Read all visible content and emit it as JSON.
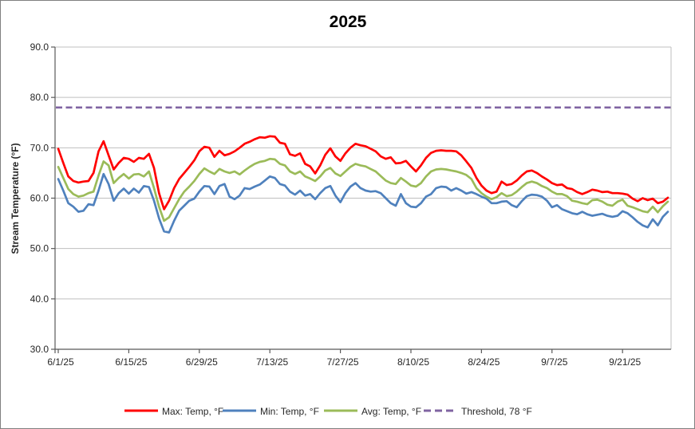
{
  "chart": {
    "title": "2025",
    "y_axis_label": "Stream Temperature (°F)"
  },
  "colors": {
    "max_line": "#FF0000",
    "min_line": "#4F81BD",
    "avg_line": "#9BBB59",
    "threshold_line": "#8064A2",
    "gridline": "#BFBFBF",
    "axis": "#595959",
    "label_text": "#262626"
  },
  "chart_data": {
    "type": "line",
    "title": "2025",
    "xlabel": "",
    "ylabel": "Stream Temperature (°F)",
    "ylim": [
      30,
      90
    ],
    "y_tick_step": 10,
    "y_tick_labels": [
      "90.0",
      "80.0",
      "70.0",
      "60.0",
      "50.0",
      "40.0",
      "30.0"
    ],
    "x_tick_labels": [
      "6/1/25",
      "6/15/25",
      "6/29/25",
      "7/13/25",
      "7/27/25",
      "8/10/25",
      "8/24/25",
      "9/7/25",
      "9/21/25"
    ],
    "x_tick_day_index": [
      0,
      14,
      28,
      42,
      56,
      70,
      84,
      98,
      112
    ],
    "x_start": "6/1/25",
    "x_end": "9/30/25",
    "x_interval_days": 1,
    "grid": "horizontal",
    "legend_position": "bottom",
    "series": [
      {
        "name": "Max: Temp, °F",
        "color": "#FF0000",
        "style": "solid",
        "values": [
          69.8,
          67.0,
          64.3,
          63.4,
          63.1,
          63.3,
          63.4,
          65.0,
          69.3,
          71.3,
          68.5,
          65.7,
          67.0,
          68.0,
          67.8,
          67.2,
          68.0,
          67.8,
          68.8,
          66.0,
          61.0,
          57.8,
          59.5,
          62.0,
          63.8,
          65.0,
          66.2,
          67.5,
          69.3,
          70.2,
          70.0,
          68.2,
          69.4,
          68.5,
          68.8,
          69.3,
          70.0,
          70.8,
          71.2,
          71.7,
          72.1,
          72.0,
          72.3,
          72.2,
          71.0,
          70.8,
          68.7,
          68.4,
          68.9,
          66.8,
          66.3,
          64.9,
          66.5,
          68.6,
          69.9,
          68.3,
          67.4,
          68.9,
          70.0,
          70.8,
          70.5,
          70.3,
          69.8,
          69.3,
          68.3,
          67.8,
          68.1,
          66.9,
          67.0,
          67.4,
          66.3,
          65.3,
          66.5,
          68.0,
          69.0,
          69.4,
          69.5,
          69.4,
          69.4,
          69.3,
          68.5,
          67.3,
          66.0,
          64.0,
          62.5,
          61.5,
          61.0,
          61.3,
          63.3,
          62.6,
          62.8,
          63.5,
          64.5,
          65.3,
          65.5,
          65.0,
          64.3,
          63.7,
          63.0,
          62.6,
          62.7,
          62.0,
          61.8,
          61.2,
          60.8,
          61.2,
          61.7,
          61.5,
          61.2,
          61.3,
          61.0,
          61.0,
          60.9,
          60.7,
          59.9,
          59.4,
          60.0,
          59.6,
          59.9,
          59.0,
          59.3,
          60.1
        ]
      },
      {
        "name": "Min: Temp, °F",
        "color": "#4F81BD",
        "style": "solid",
        "values": [
          63.8,
          61.5,
          59.0,
          58.3,
          57.3,
          57.5,
          58.8,
          58.6,
          61.5,
          64.8,
          62.8,
          59.5,
          61.0,
          61.9,
          60.9,
          61.9,
          61.1,
          62.4,
          62.2,
          59.5,
          56.0,
          53.4,
          53.2,
          55.5,
          57.5,
          58.5,
          59.5,
          59.9,
          61.3,
          62.4,
          62.3,
          60.8,
          62.4,
          62.8,
          60.3,
          59.8,
          60.5,
          62.0,
          61.8,
          62.3,
          62.7,
          63.5,
          64.3,
          64.0,
          62.8,
          62.5,
          61.3,
          60.7,
          61.5,
          60.5,
          60.8,
          59.8,
          61.0,
          62.0,
          62.4,
          60.5,
          59.2,
          61.0,
          62.3,
          63.0,
          62.0,
          61.5,
          61.3,
          61.4,
          61.0,
          60.0,
          59.0,
          58.5,
          60.8,
          59.0,
          58.3,
          58.2,
          59.0,
          60.3,
          60.8,
          62.0,
          62.3,
          62.2,
          61.5,
          62.0,
          61.5,
          60.9,
          61.2,
          60.8,
          60.3,
          59.9,
          59.0,
          59.0,
          59.3,
          59.4,
          58.6,
          58.2,
          59.4,
          60.4,
          60.7,
          60.6,
          60.3,
          59.5,
          58.2,
          58.6,
          57.8,
          57.4,
          57.0,
          56.8,
          57.3,
          56.8,
          56.5,
          56.7,
          56.9,
          56.5,
          56.3,
          56.5,
          57.4,
          57.0,
          56.2,
          55.3,
          54.6,
          54.2,
          55.8,
          54.6,
          56.3,
          57.3
        ]
      },
      {
        "name": "Avg: Temp, °F",
        "color": "#9BBB59",
        "style": "solid",
        "values": [
          66.2,
          64.0,
          61.8,
          60.8,
          60.3,
          60.5,
          61.0,
          61.3,
          64.5,
          67.3,
          66.5,
          63.0,
          64.0,
          64.8,
          63.9,
          64.7,
          64.8,
          64.3,
          65.3,
          62.0,
          58.3,
          55.5,
          56.2,
          58.0,
          59.8,
          61.3,
          62.3,
          63.4,
          64.8,
          65.9,
          65.3,
          64.8,
          65.8,
          65.3,
          65.0,
          65.3,
          64.7,
          65.5,
          66.2,
          66.8,
          67.2,
          67.4,
          67.8,
          67.7,
          66.8,
          66.5,
          65.3,
          64.8,
          65.3,
          64.3,
          63.9,
          63.4,
          64.3,
          65.5,
          66.0,
          64.9,
          64.4,
          65.3,
          66.2,
          66.8,
          66.5,
          66.3,
          65.8,
          65.3,
          64.4,
          63.5,
          63.0,
          62.8,
          64.0,
          63.3,
          62.5,
          62.3,
          63.0,
          64.3,
          65.3,
          65.7,
          65.8,
          65.7,
          65.5,
          65.3,
          65.0,
          64.6,
          63.8,
          62.0,
          61.0,
          60.3,
          59.8,
          60.2,
          61.0,
          60.4,
          60.6,
          61.3,
          62.2,
          63.0,
          63.3,
          63.0,
          62.4,
          62.0,
          61.3,
          60.8,
          60.8,
          60.4,
          59.5,
          59.3,
          59.0,
          58.8,
          59.6,
          59.7,
          59.3,
          58.7,
          58.5,
          59.3,
          59.7,
          58.5,
          58.2,
          57.8,
          57.4,
          57.2,
          58.3,
          57.2,
          58.4,
          59.3
        ]
      },
      {
        "name": "Threshold, 78 °F",
        "color": "#8064A2",
        "style": "dashed",
        "constant": 78
      }
    ]
  }
}
